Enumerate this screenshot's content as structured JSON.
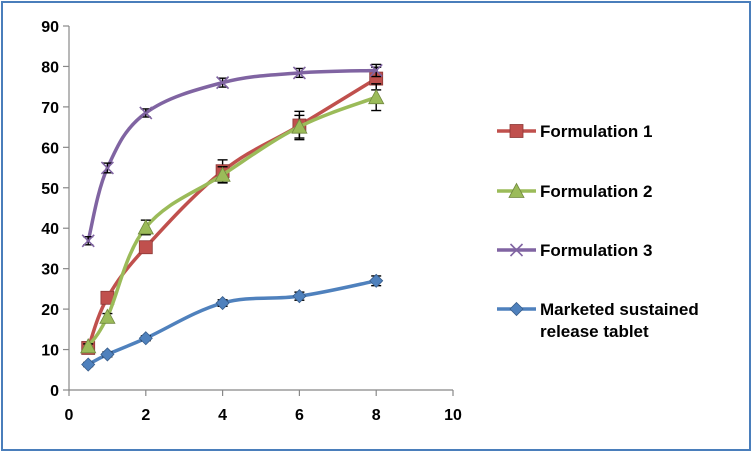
{
  "chart_data": {
    "type": "line",
    "title": "",
    "xlabel": "",
    "ylabel": "",
    "xlim": [
      0,
      10
    ],
    "ylim": [
      0,
      90
    ],
    "xticks": [
      0,
      2,
      4,
      6,
      8,
      10
    ],
    "yticks": [
      0,
      10,
      20,
      30,
      40,
      50,
      60,
      70,
      80,
      90
    ],
    "grid": false,
    "legend_position": "right",
    "series": [
      {
        "name": "Formulation 1",
        "color": "#c0504d",
        "marker": "square",
        "x": [
          0.5,
          1,
          2,
          4,
          6,
          8
        ],
        "y": [
          10.4,
          22.8,
          35.3,
          54.1,
          65.4,
          77.0
        ],
        "err": [
          0.6,
          0.8,
          1.0,
          2.8,
          3.5,
          2.8
        ]
      },
      {
        "name": "Formulation 2",
        "color": "#9bbb59",
        "marker": "triangle",
        "x": [
          0.5,
          1,
          2,
          4,
          6,
          8
        ],
        "y": [
          10.8,
          18.1,
          40.2,
          53.2,
          65.1,
          72.4
        ],
        "err": [
          0.6,
          0.8,
          1.8,
          2.0,
          2.8,
          3.3
        ]
      },
      {
        "name": "Formulation 3",
        "color": "#8064a2",
        "marker": "x",
        "x": [
          0.5,
          1,
          2,
          4,
          6,
          8
        ],
        "y": [
          36.9,
          54.9,
          68.5,
          76.0,
          78.4,
          79.0
        ],
        "err": [
          1.0,
          1.2,
          1.0,
          1.1,
          1.1,
          1.5
        ]
      },
      {
        "name": "Marketed sustained release tablet",
        "legend_lines": [
          "Marketed sustained",
          "release tablet"
        ],
        "color": "#4f81bd",
        "marker": "diamond",
        "x": [
          0.5,
          1,
          2,
          4,
          6,
          8
        ],
        "y": [
          6.3,
          8.8,
          12.8,
          21.5,
          23.2,
          27.0
        ],
        "err": [
          0.5,
          0.6,
          0.6,
          0.8,
          1.0,
          1.2
        ]
      }
    ]
  }
}
